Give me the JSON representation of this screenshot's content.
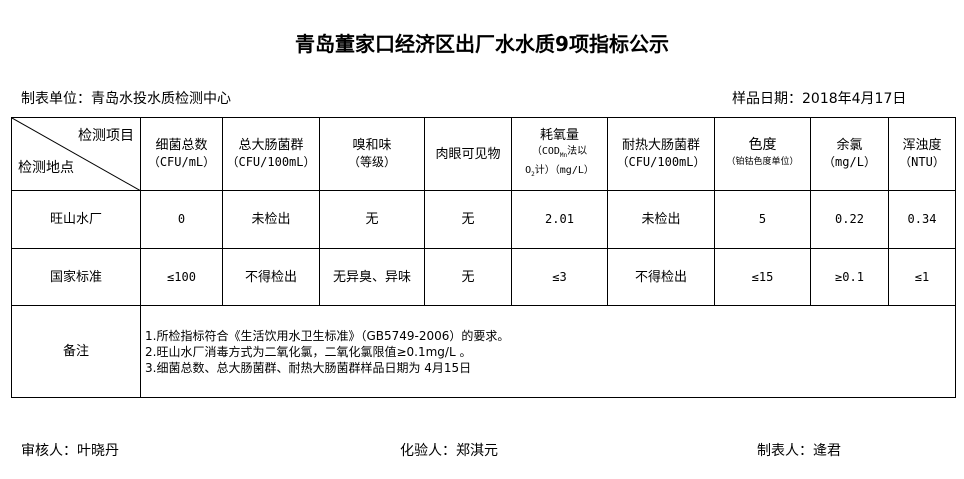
{
  "title": "青岛董家口经济区出厂水水质9项指标公示",
  "unit": "制表单位：青岛水投水质检测中心",
  "sample_date": "样品日期：2018年4月17日",
  "header": {
    "item_label": "检测项目",
    "site_label": "检测地点",
    "cols": [
      {
        "name": "细菌总数",
        "unit": "（CFU/mL）"
      },
      {
        "name": "总大肠菌群",
        "unit": "（CFU/100mL）"
      },
      {
        "name": "嗅和味",
        "unit": "（等级）"
      },
      {
        "name": "肉眼可见物",
        "unit": ""
      },
      {
        "name": "耗氧量",
        "unit": "（COD",
        "sub": "Mn",
        "unit2": "法以",
        "unit3": "O",
        "sub2": "2",
        "unit4": "计）（mg/L）"
      },
      {
        "name": "耐热大肠菌群",
        "unit": "（CFU/100mL）"
      },
      {
        "name": "色度",
        "unit": "（铂钴色度单位）"
      },
      {
        "name": "余氯",
        "unit": "（mg/L）"
      },
      {
        "name": "浑浊度",
        "unit": "（NTU）"
      }
    ]
  },
  "rows": [
    {
      "site": "旺山水厂",
      "values": [
        "0",
        "未检出",
        "无",
        "无",
        "2.01",
        "未检出",
        "5",
        "0.22",
        "0.34"
      ]
    },
    {
      "site": "国家标准",
      "values": [
        "≤100",
        "不得检出",
        "无异臭、异味",
        "无",
        "≤3",
        "不得检出",
        "≤15",
        "≥0.1",
        "≤1"
      ]
    }
  ],
  "notes_label": "备注",
  "notes": [
    "1.所检指标符合《生活饮用水卫生标准》（GB5749-2006）的要求。",
    "2.旺山水厂消毒方式为二氧化氯，二氧化氯限值≥0.1mg/L 。",
    "3.细菌总数、总大肠菌群、耐热大肠菌群样品日期为 4月15日"
  ],
  "footer": {
    "reviewer": "审核人：叶晓丹",
    "tester": "化验人：郑淇元",
    "preparer": "制表人：逄君"
  }
}
